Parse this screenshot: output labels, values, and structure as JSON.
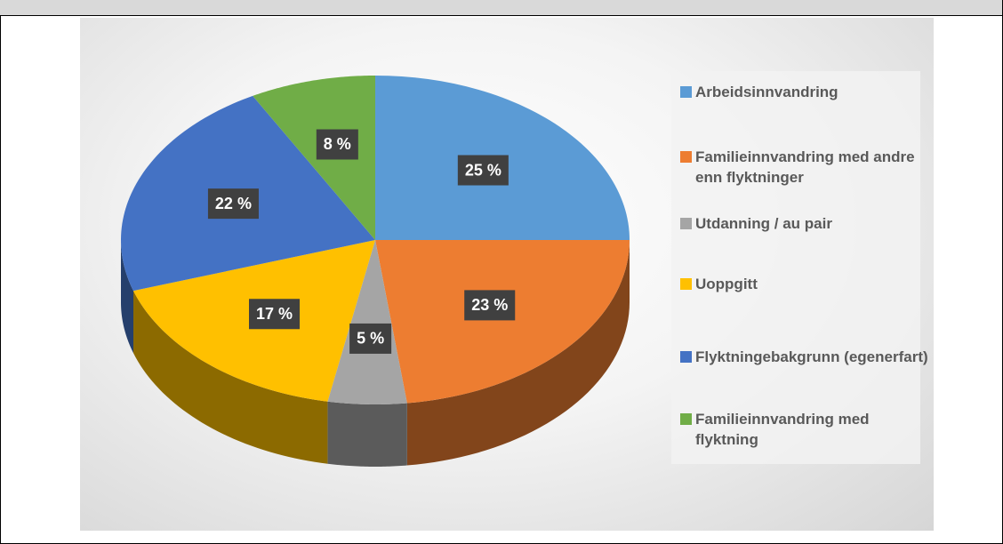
{
  "chart_data": {
    "type": "pie",
    "categories": [
      "Arbeidsinnvandring",
      "Familieinnvandring med andre enn flyktninger",
      "Utdanning / au pair",
      "Uoppgitt",
      "Flyktningebakgrunn (egenerfart)",
      "Familieinnvandring med flyktning"
    ],
    "values": [
      25,
      23,
      5,
      17,
      22,
      8
    ],
    "value_labels": [
      "25 %",
      "23 %",
      "5 %",
      "17 %",
      "22 %",
      "8 %"
    ],
    "colors": [
      "#5b9bd5",
      "#ed7d31",
      "#a5a5a5",
      "#ffc000",
      "#4472c4",
      "#70ad47"
    ]
  }
}
